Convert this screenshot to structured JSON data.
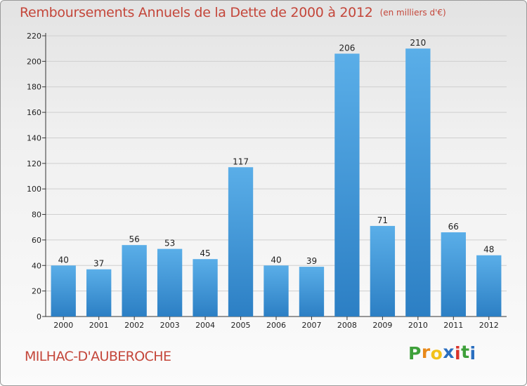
{
  "title": "Remboursements Annuels de la Dette de 2000 à 2012",
  "subtitle": "(en milliers d'€)",
  "commune": "MILHAC-D'AUBEROCHE",
  "brand": {
    "letters": [
      "P",
      "r",
      "o",
      "x",
      "i",
      "t",
      "i"
    ],
    "colors": [
      "#3ea03a",
      "#e8891a",
      "#f2c21a",
      "#2a6fc0",
      "#d9332b",
      "#3ea03a",
      "#2a6fc0"
    ]
  },
  "colors": {
    "title": "#c4463a",
    "bar_light": "#5aaee8",
    "bar_dark": "#2c7fc4"
  },
  "chart_data": {
    "type": "bar",
    "title": "Remboursements Annuels de la Dette de 2000 à 2012",
    "subtitle": "(en milliers d'€)",
    "categories": [
      "2000",
      "2001",
      "2002",
      "2003",
      "2004",
      "2005",
      "2006",
      "2007",
      "2008",
      "2009",
      "2010",
      "2011",
      "2012"
    ],
    "values": [
      40,
      37,
      56,
      53,
      45,
      117,
      40,
      39,
      206,
      71,
      210,
      66,
      48
    ],
    "yticks": [
      0,
      20,
      40,
      60,
      80,
      100,
      120,
      140,
      160,
      180,
      200,
      220
    ],
    "ylim": [
      0,
      220
    ],
    "xlabel": "",
    "ylabel": "",
    "grid": true,
    "legend": "none"
  }
}
